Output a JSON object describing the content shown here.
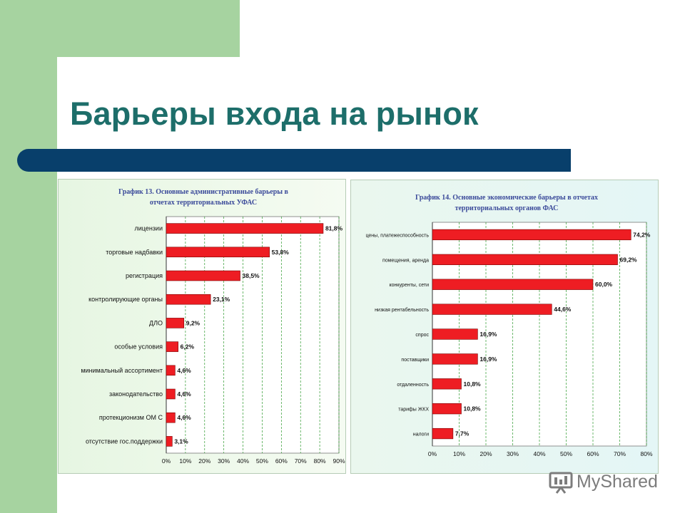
{
  "slide": {
    "title": "Барьеры входа на рынок",
    "brand_color": "#1d6e6a",
    "band_color": "#a6d3a0",
    "bar_color": "#083f6b"
  },
  "watermark": {
    "text": "MyShared",
    "icon": "presentation-board-icon"
  },
  "chart_data": [
    {
      "type": "bar",
      "orientation": "horizontal",
      "title": "График 13. Основные административные барьеры в отчетах территориальных УФАС",
      "title_lines": [
        "График 13. Основные административные барьеры в",
        "отчетах территориальных УФАС"
      ],
      "categories": [
        "лицензии",
        "торговые надбавки",
        "регистрация",
        "контролирующие органы",
        "ДЛО",
        "особые условия",
        "минимальный ассортимент",
        "законодательство",
        "протекционизм ОМ С",
        "отсутствие гос.поддержки"
      ],
      "values": [
        81.8,
        53.8,
        38.5,
        23.1,
        9.2,
        6.2,
        4.6,
        4.6,
        4.6,
        3.1
      ],
      "value_labels": [
        "81,8%",
        "53,8%",
        "38,5%",
        "23,1%",
        "9,2%",
        "6,2%",
        "4,6%",
        "4,6%",
        "4,6%",
        "3,1%"
      ],
      "xlim": [
        0,
        90
      ],
      "ticks": [
        "0%",
        "10%",
        "20%",
        "30%",
        "40%",
        "50%",
        "60%",
        "70%",
        "80%",
        "90%"
      ],
      "grid": true,
      "bar_color": "#ee1d23"
    },
    {
      "type": "bar",
      "orientation": "horizontal",
      "title": "График 14. Основные экономические барьеры в отчетах территориальных органов ФАС",
      "title_lines": [
        "График 14. Основные экономические барьеры в отчетах",
        "территориальных органов ФАС"
      ],
      "categories": [
        "цены, платежеспособность",
        "помещения, аренда",
        "конкуренты, сети",
        "низкая рентабельность",
        "спрос",
        "поставщики",
        "отдаленность",
        "тарифы ЖКХ",
        "налоги"
      ],
      "values": [
        74.2,
        69.2,
        60.0,
        44.6,
        16.9,
        16.9,
        10.8,
        10.8,
        7.7
      ],
      "value_labels": [
        "74,2%",
        "69,2%",
        "60,0%",
        "44,6%",
        "16,9%",
        "16,9%",
        "10,8%",
        "10,8%",
        "7,7%"
      ],
      "xlim": [
        0,
        80
      ],
      "ticks": [
        "0%",
        "10%",
        "20%",
        "30%",
        "40%",
        "50%",
        "60%",
        "70%",
        "80%"
      ],
      "grid": true,
      "bar_color": "#ee1d23"
    }
  ]
}
